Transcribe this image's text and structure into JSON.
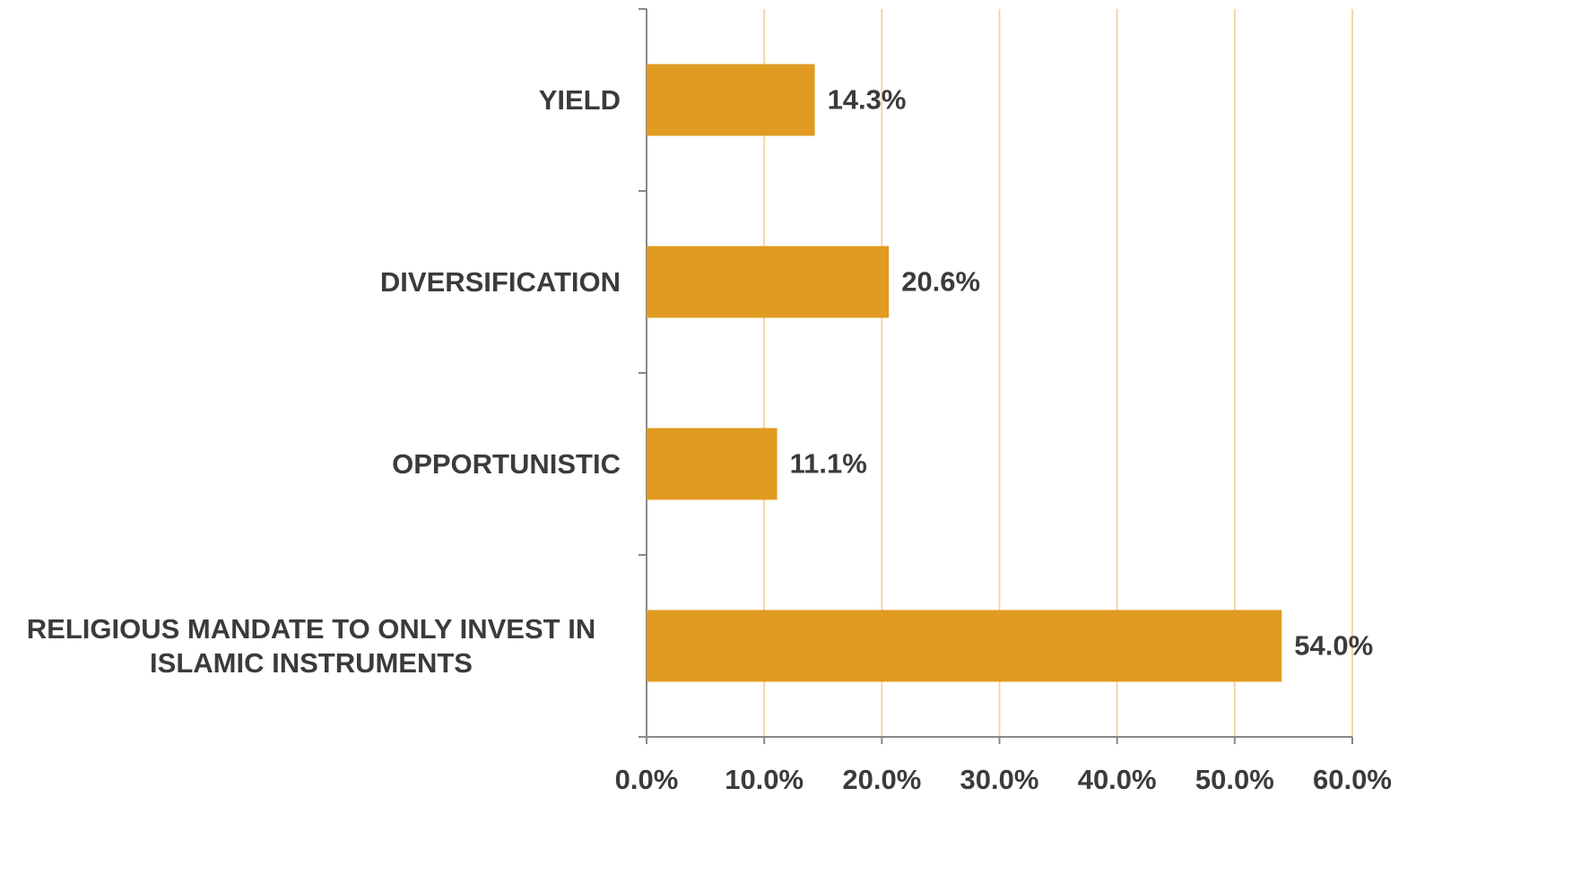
{
  "chart_data": {
    "type": "bar",
    "orientation": "horizontal",
    "categories": [
      "YIELD",
      "DIVERSIFICATION",
      "OPPORTUNISTIC",
      "RELIGIOUS MANDATE TO ONLY INVEST IN ISLAMIC INSTRUMENTS"
    ],
    "values": [
      14.3,
      20.6,
      11.1,
      54.0
    ],
    "value_labels": [
      "14.3%",
      "20.6%",
      "11.1%",
      "54.0%"
    ],
    "color": "#e09b20",
    "xlim": [
      0,
      60
    ],
    "xticks": [
      {
        "value": 0,
        "label": "0.0%"
      },
      {
        "value": 10,
        "label": "10.0%"
      },
      {
        "value": 20,
        "label": "20.0%"
      },
      {
        "value": 30,
        "label": "30.0%"
      },
      {
        "value": 40,
        "label": "40.0%"
      },
      {
        "value": 50,
        "label": "50.0%"
      },
      {
        "value": 60,
        "label": "60.0%"
      }
    ],
    "grid": true,
    "grid_color": "#f9d4a6"
  }
}
